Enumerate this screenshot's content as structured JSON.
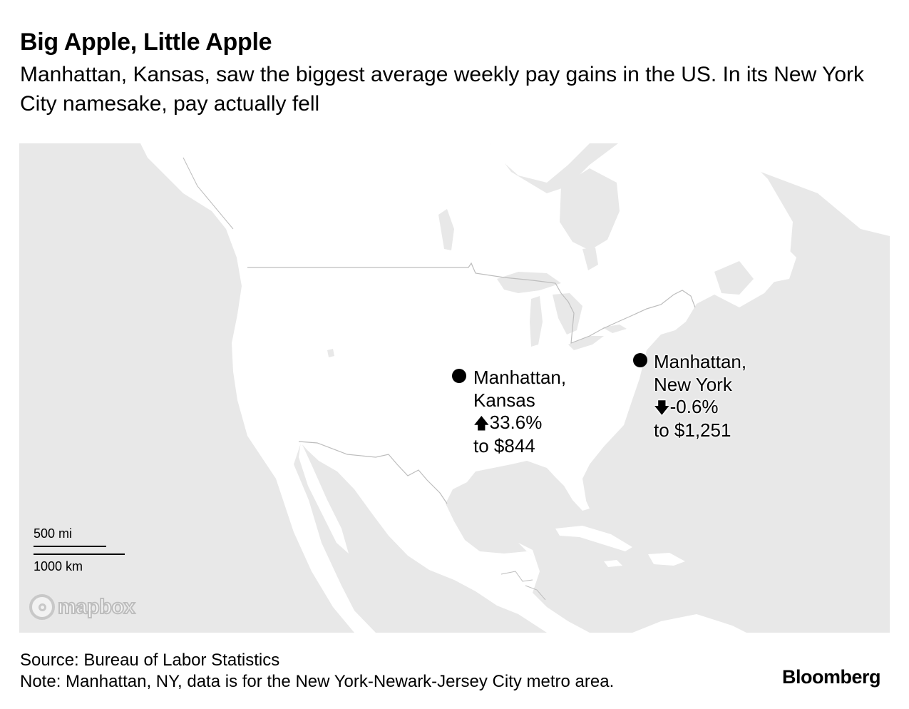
{
  "header": {
    "title": "Big Apple, Little Apple",
    "subtitle": "Manhattan, Kansas, saw the biggest average weekly pay gains in the US. In its New York City namesake, pay actually fell"
  },
  "map": {
    "colors": {
      "water": "#e8e8e8",
      "land": "#ffffff",
      "border": "#bdbdbd",
      "marker": "#000000"
    },
    "markers": [
      {
        "id": "kansas",
        "line1": "Manhattan,",
        "line2": "Kansas",
        "arrow": "🡅",
        "change": "33.6%",
        "pay": "to $844"
      },
      {
        "id": "newyork",
        "line1": "Manhattan,",
        "line2": "New York",
        "arrow": "🡇",
        "change": "-0.6%",
        "pay": "to $1,251"
      }
    ],
    "scale": {
      "miles": "500 mi",
      "km": "1000 km"
    },
    "attribution": "mapbox"
  },
  "footer": {
    "source": "Source: Bureau of Labor Statistics",
    "note": "Note: Manhattan, NY, data is for the New York-Newark-Jersey City metro area.",
    "brand": "Bloomberg"
  }
}
